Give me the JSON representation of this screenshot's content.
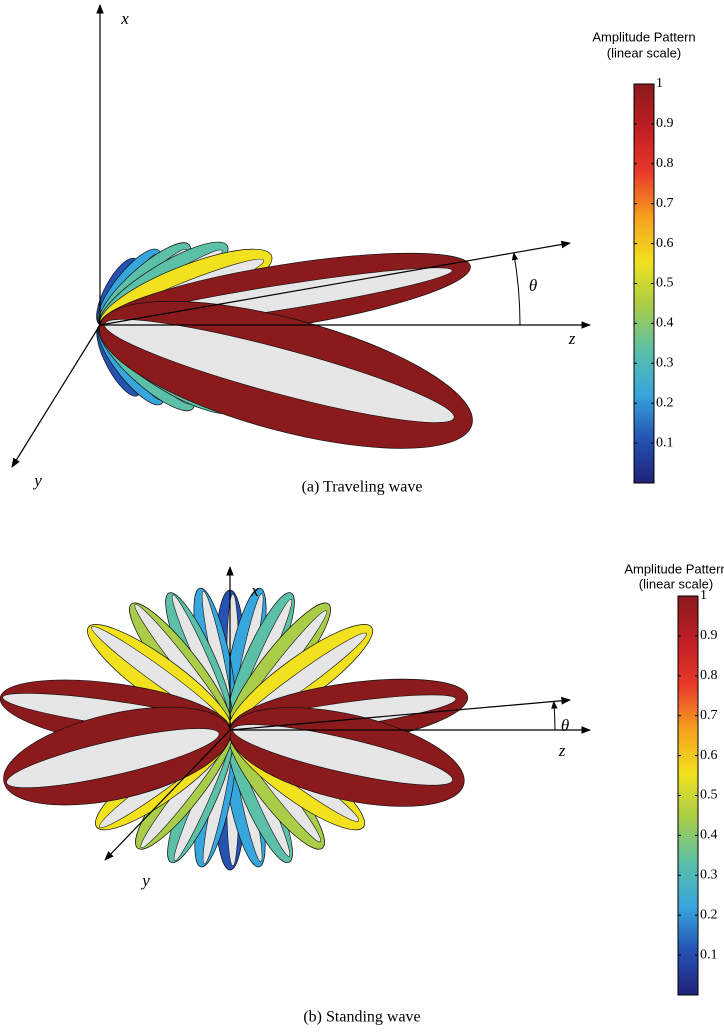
{
  "panels": [
    {
      "caption": "(a) Traveling wave",
      "axes": {
        "x": "x",
        "y": "y",
        "z": "z",
        "angle": "θ"
      },
      "colorbar": {
        "title": "Amplitude Pattern",
        "subtitle": "(linear scale)",
        "lim": [
          0,
          1
        ],
        "ticks": [
          0.1,
          0.2,
          0.3,
          0.4,
          0.5,
          0.6,
          0.7,
          0.8,
          0.9,
          1
        ],
        "colors": [
          "#20217a",
          "#2553b3",
          "#36a6dc",
          "#5cc0a8",
          "#a9cd48",
          "#f1e11e",
          "#f6a01f",
          "#e8392a",
          "#c01d24",
          "#8a1a1c"
        ]
      }
    },
    {
      "caption": "(b) Standing wave",
      "axes": {
        "x": "x",
        "y": "y",
        "z": "z",
        "angle": "θ"
      },
      "colorbar": {
        "title": "Amplitude Pattern",
        "subtitle": "(linear scale)",
        "lim": [
          0,
          1
        ],
        "ticks": [
          0.1,
          0.2,
          0.3,
          0.4,
          0.5,
          0.6,
          0.7,
          0.8,
          0.9,
          1
        ],
        "colors": [
          "#20217a",
          "#2553b3",
          "#36a6dc",
          "#5cc0a8",
          "#a9cd48",
          "#f1e11e",
          "#f6a01f",
          "#e8392a",
          "#c01d24",
          "#8a1a1c"
        ]
      }
    }
  ]
}
